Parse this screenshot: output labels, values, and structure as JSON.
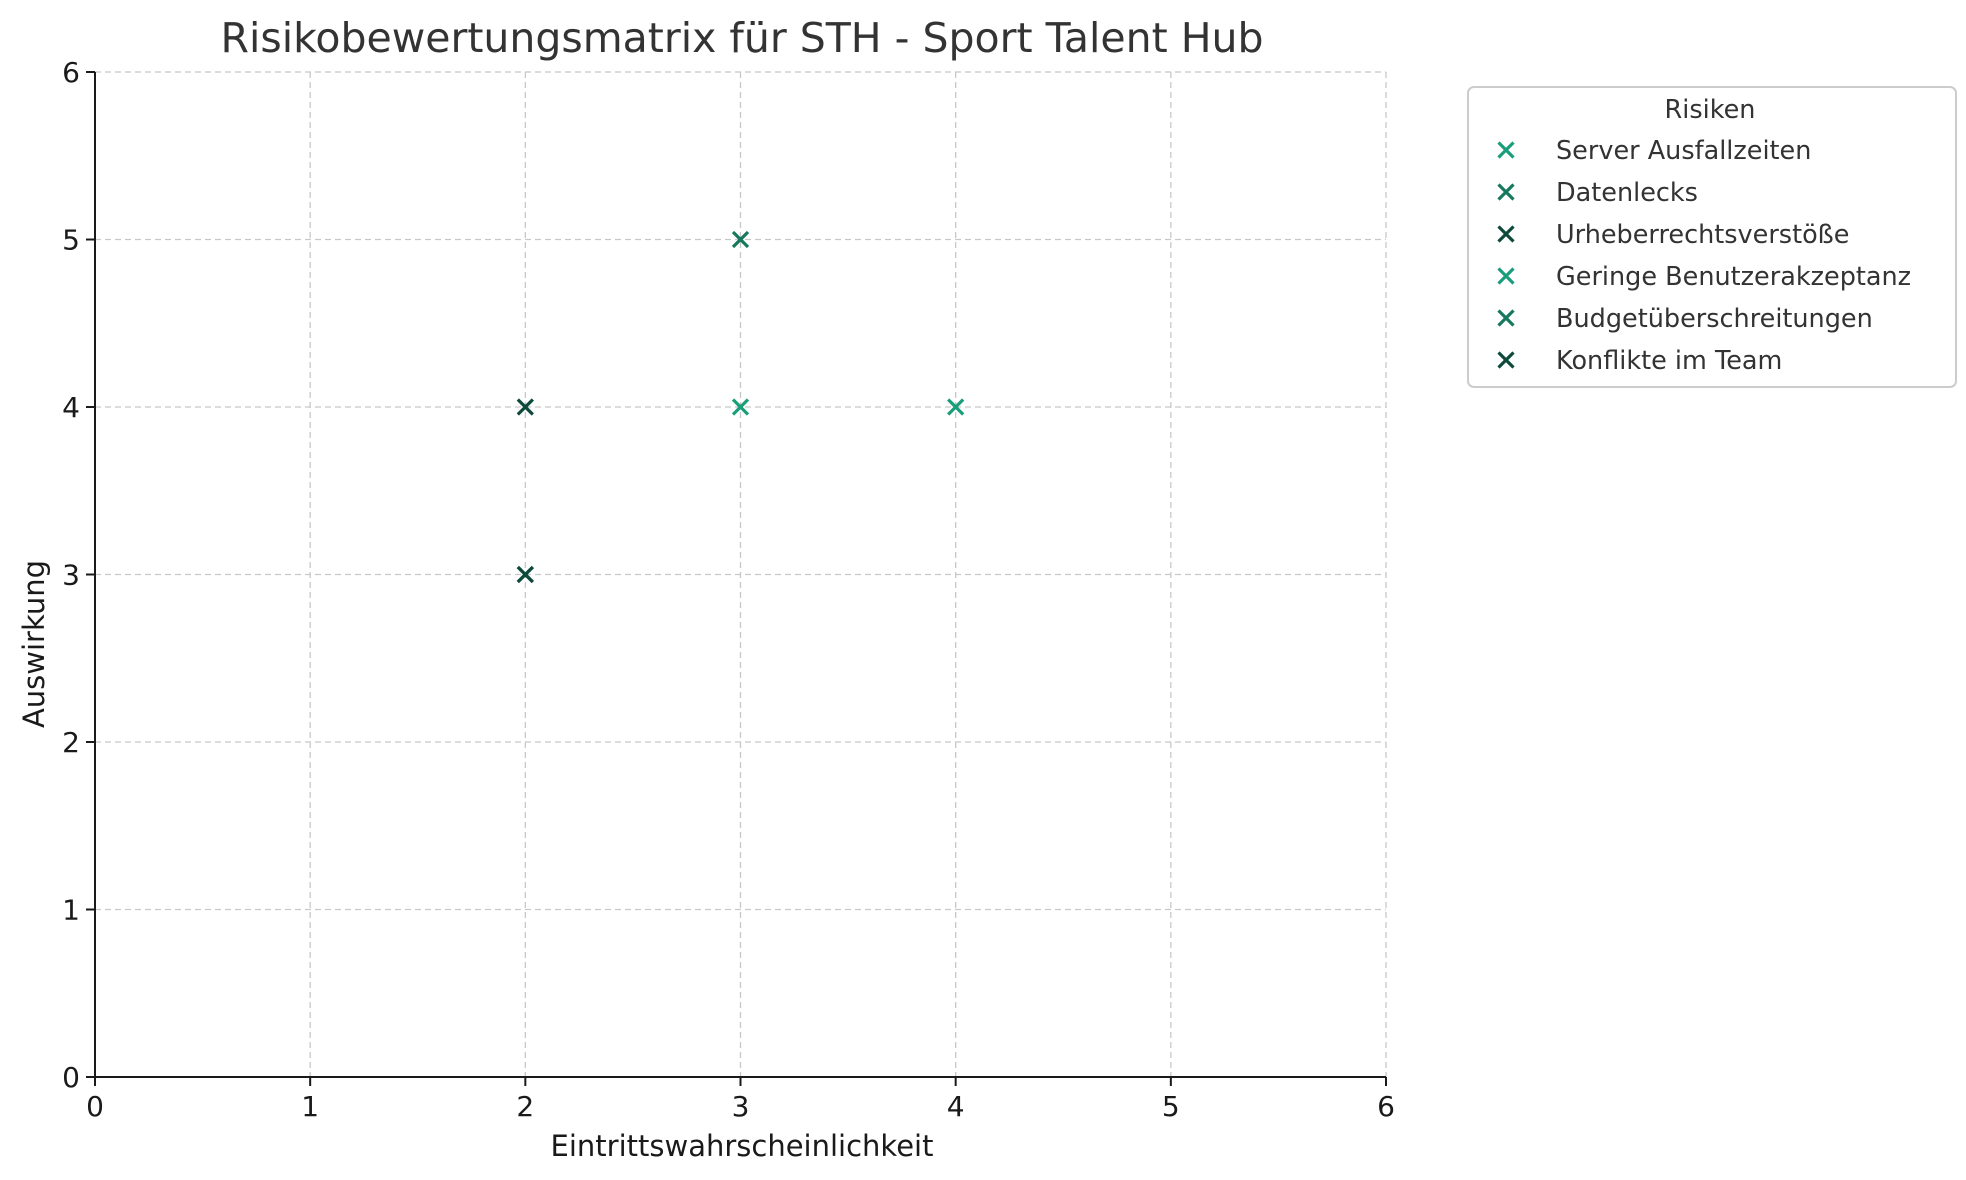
{
  "chart_data": {
    "type": "scatter",
    "title": "Risikobewertungsmatrix für STH - Sport Talent Hub",
    "xlabel": "Eintrittswahrscheinlichkeit",
    "ylabel": "Auswirkung",
    "xlim": [
      0,
      6
    ],
    "ylim": [
      0,
      6
    ],
    "xticks": [
      "0",
      "1",
      "2",
      "3",
      "4",
      "5",
      "6"
    ],
    "yticks": [
      "0",
      "1",
      "2",
      "3",
      "4",
      "5",
      "6"
    ],
    "grid": true,
    "marker": "x",
    "legend": {
      "title": "Risiken",
      "placement": "outside-right-top"
    },
    "series": [
      {
        "name": "Server Ausfallzeiten",
        "color": "#1a9e7a",
        "x": [
          4
        ],
        "y": [
          4
        ]
      },
      {
        "name": "Datenlecks",
        "color": "#16785c",
        "x": [
          3
        ],
        "y": [
          5
        ]
      },
      {
        "name": "Urheberrechtsverstöße",
        "color": "#0e4a3a",
        "x": [
          2
        ],
        "y": [
          4
        ]
      },
      {
        "name": "Geringe Benutzerakzeptanz",
        "color": "#1a9e7a",
        "x": [
          3
        ],
        "y": [
          4
        ]
      },
      {
        "name": "Budgetüberschreitungen",
        "color": "#16785c",
        "x": [
          2
        ],
        "y": [
          3
        ]
      },
      {
        "name": "Konflikte im Team",
        "color": "#0e4a3a",
        "x": [
          2
        ],
        "y": [
          3
        ]
      }
    ]
  }
}
